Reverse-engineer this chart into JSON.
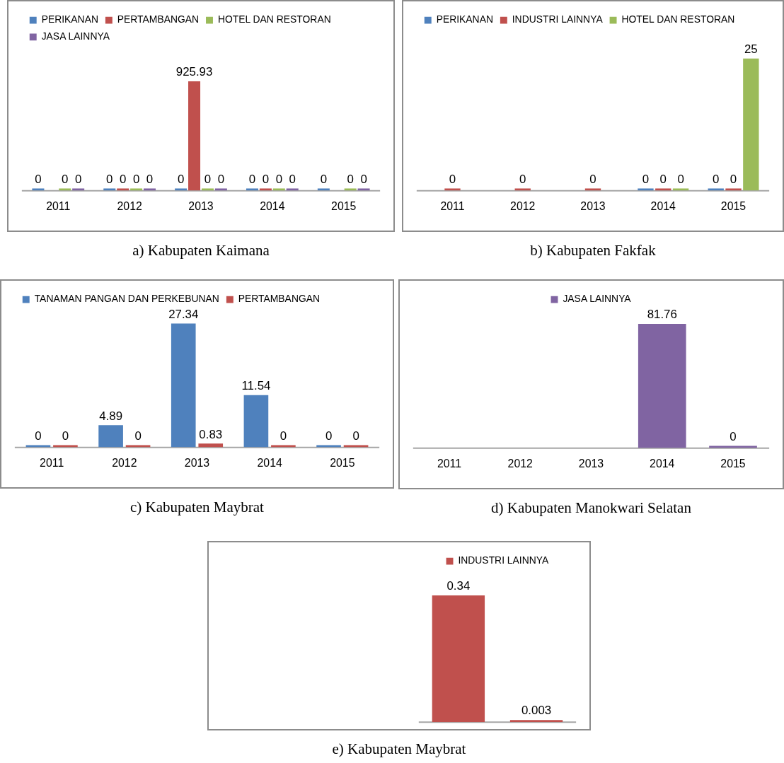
{
  "chart_data": [
    {
      "type": "bar",
      "title": "a) Kabupaten Kaimana",
      "categories": [
        "2011",
        "2012",
        "2013",
        "2014",
        "2015"
      ],
      "series": [
        {
          "name": "PERIKANAN",
          "color": "#4f81bd",
          "values": [
            0,
            0,
            0,
            0,
            0
          ]
        },
        {
          "name": "PERTAMBANGAN",
          "color": "#c0504d",
          "values": [
            null,
            0,
            925.93,
            0,
            null
          ]
        },
        {
          "name": "HOTEL DAN RESTORAN",
          "color": "#9bbb59",
          "values": [
            0,
            0,
            0,
            0,
            0
          ]
        },
        {
          "name": "JASA LAINNYA",
          "color": "#8064a2",
          "values": [
            0,
            0,
            0,
            0,
            0
          ]
        }
      ],
      "data_labels": true,
      "legend": "top left",
      "grid": false,
      "tick_labels": "x"
    },
    {
      "type": "bar",
      "title": "b) Kabupaten Fakfak",
      "categories": [
        "2011",
        "2012",
        "2013",
        "2014",
        "2015"
      ],
      "series": [
        {
          "name": "PERIKANAN",
          "color": "#4f81bd",
          "values": [
            null,
            null,
            null,
            0,
            0
          ]
        },
        {
          "name": "INDUSTRI LAINNYA",
          "color": "#c0504d",
          "values": [
            0,
            0,
            0,
            0,
            0
          ]
        },
        {
          "name": "HOTEL DAN RESTORAN",
          "color": "#9bbb59",
          "values": [
            null,
            null,
            null,
            0,
            25
          ]
        }
      ],
      "data_labels": true,
      "legend": "top left",
      "grid": false,
      "tick_labels": "x"
    },
    {
      "type": "bar",
      "title": "c) Kabupaten Maybrat",
      "categories": [
        "2011",
        "2012",
        "2013",
        "2014",
        "2015"
      ],
      "series": [
        {
          "name": "TANAMAN PANGAN DAN PERKEBUNAN",
          "color": "#4f81bd",
          "values": [
            0,
            4.89,
            27.34,
            11.54,
            0
          ]
        },
        {
          "name": "PERTAMBANGAN",
          "color": "#c0504d",
          "values": [
            0,
            0,
            0.83,
            0,
            0
          ]
        }
      ],
      "data_labels": true,
      "legend": "top left",
      "grid": false,
      "tick_labels": "x"
    },
    {
      "type": "bar",
      "title": "d) Kabupaten Manokwari Selatan",
      "categories": [
        "2011",
        "2012",
        "2013",
        "2014",
        "2015"
      ],
      "series": [
        {
          "name": "JASA LAINNYA",
          "color": "#8064a2",
          "values": [
            null,
            null,
            null,
            81.76,
            0
          ]
        }
      ],
      "data_labels": true,
      "legend": "top",
      "grid": false,
      "tick_labels": "x"
    },
    {
      "type": "bar",
      "title": "e) Kabupaten Maybrat",
      "categories": [
        null,
        null
      ],
      "series": [
        {
          "name": "INDUSTRI LAINNYA",
          "color": "#c0504d",
          "values": [
            0.34,
            0.003
          ]
        }
      ],
      "data_labels": true,
      "legend": "top",
      "grid": false,
      "tick_labels": false
    }
  ]
}
